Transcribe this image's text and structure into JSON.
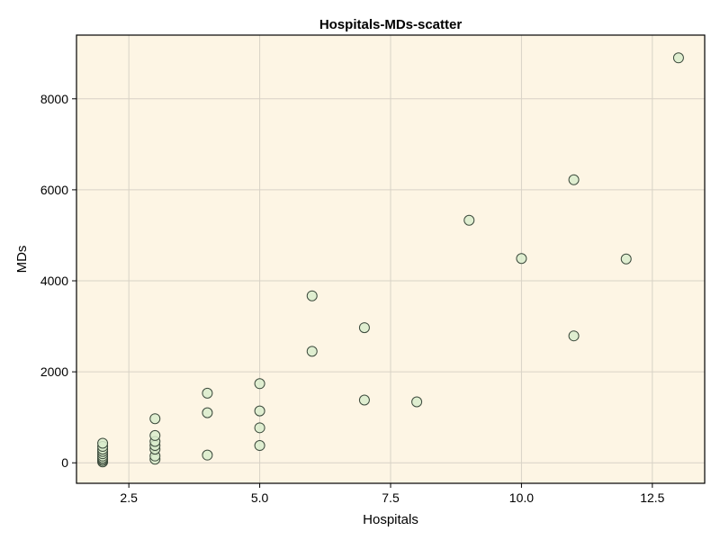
{
  "chart_data": {
    "type": "scatter",
    "title": "Hospitals-MDs-scatter",
    "xlabel": "Hospitals",
    "ylabel": "MDs",
    "xlim": [
      1.5,
      13.5
    ],
    "ylim": [
      -450,
      9400
    ],
    "xticks": [
      2.5,
      5.0,
      7.5,
      10.0,
      12.5
    ],
    "xtick_labels": [
      "2.5",
      "5.0",
      "7.5",
      "10.0",
      "12.5"
    ],
    "yticks": [
      0,
      2000,
      4000,
      6000,
      8000
    ],
    "ytick_labels": [
      "0",
      "2000",
      "4000",
      "6000",
      "8000"
    ],
    "grid": true,
    "colors": {
      "plot_background": "#fdf5e4",
      "marker_fill": "#d9eccc",
      "marker_edge": "#3c4a3c",
      "grid": "#d8d2c6",
      "frame": "#000000"
    },
    "points": [
      {
        "x": 2,
        "y": 20
      },
      {
        "x": 2,
        "y": 50
      },
      {
        "x": 2,
        "y": 80
      },
      {
        "x": 2,
        "y": 110
      },
      {
        "x": 2,
        "y": 150
      },
      {
        "x": 2,
        "y": 200
      },
      {
        "x": 2,
        "y": 250
      },
      {
        "x": 2,
        "y": 300
      },
      {
        "x": 2,
        "y": 360
      },
      {
        "x": 2,
        "y": 430
      },
      {
        "x": 3,
        "y": 80
      },
      {
        "x": 3,
        "y": 150
      },
      {
        "x": 3,
        "y": 300
      },
      {
        "x": 3,
        "y": 380
      },
      {
        "x": 3,
        "y": 470
      },
      {
        "x": 3,
        "y": 600
      },
      {
        "x": 3,
        "y": 970
      },
      {
        "x": 4,
        "y": 170
      },
      {
        "x": 4,
        "y": 1100
      },
      {
        "x": 4,
        "y": 1530
      },
      {
        "x": 5,
        "y": 380
      },
      {
        "x": 5,
        "y": 770
      },
      {
        "x": 5,
        "y": 1140
      },
      {
        "x": 5,
        "y": 1740
      },
      {
        "x": 6,
        "y": 2450
      },
      {
        "x": 6,
        "y": 3670
      },
      {
        "x": 7,
        "y": 1380
      },
      {
        "x": 7,
        "y": 2970
      },
      {
        "x": 8,
        "y": 1340
      },
      {
        "x": 9,
        "y": 5330
      },
      {
        "x": 10,
        "y": 4490
      },
      {
        "x": 11,
        "y": 2790
      },
      {
        "x": 11,
        "y": 6220
      },
      {
        "x": 12,
        "y": 4480
      },
      {
        "x": 13,
        "y": 8900
      }
    ]
  }
}
